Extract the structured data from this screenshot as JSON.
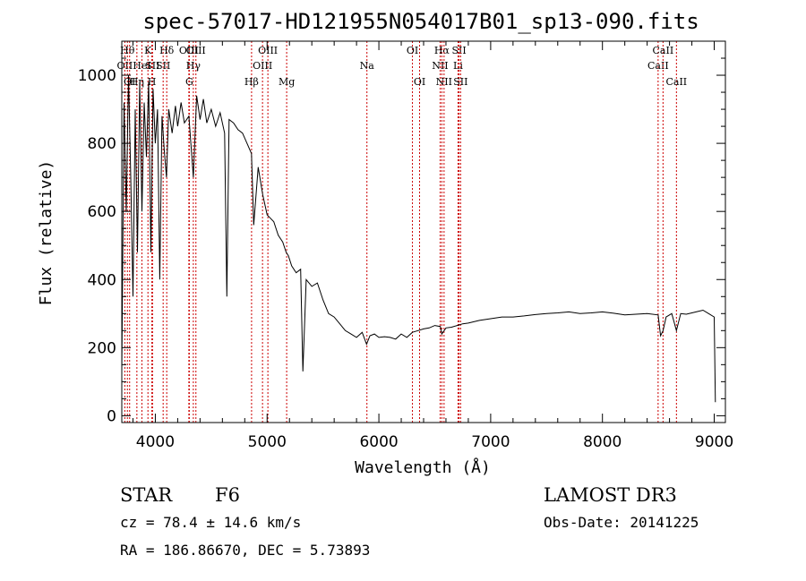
{
  "chart_data": {
    "type": "line",
    "title": "spec-57017-HD121955N054017B01_sp13-090.fits",
    "xlabel": "Wavelength (Å)",
    "ylabel": "Flux (relative)",
    "xlim": [
      3700,
      9100
    ],
    "ylim": [
      -20,
      1100
    ],
    "xticks": [
      4000,
      5000,
      6000,
      7000,
      8000,
      9000
    ],
    "yticks": [
      0,
      200,
      400,
      600,
      800,
      1000
    ],
    "line_color": "#000000",
    "marker_color": "#cc0000",
    "series": [
      {
        "name": "spectrum",
        "x": [
          3700,
          3720,
          3740,
          3760,
          3780,
          3800,
          3820,
          3840,
          3860,
          3880,
          3900,
          3920,
          3940,
          3960,
          3980,
          4000,
          4020,
          4040,
          4060,
          4080,
          4100,
          4120,
          4150,
          4180,
          4200,
          4230,
          4260,
          4300,
          4340,
          4370,
          4400,
          4430,
          4460,
          4500,
          4540,
          4580,
          4620,
          4640,
          4660,
          4700,
          4740,
          4780,
          4820,
          4860,
          4880,
          4920,
          4960,
          5000,
          5030,
          5060,
          5100,
          5140,
          5170,
          5190,
          5220,
          5260,
          5300,
          5320,
          5350,
          5400,
          5450,
          5500,
          5550,
          5600,
          5650,
          5700,
          5750,
          5800,
          5850,
          5890,
          5920,
          5960,
          6000,
          6050,
          6100,
          6150,
          6200,
          6250,
          6300,
          6350,
          6400,
          6450,
          6500,
          6550,
          6563,
          6600,
          6650,
          6700,
          6750,
          6800,
          6900,
          7000,
          7100,
          7200,
          7300,
          7400,
          7500,
          7600,
          7700,
          7800,
          7900,
          8000,
          8100,
          8200,
          8300,
          8400,
          8498,
          8520,
          8542,
          8570,
          8620,
          8662,
          8700,
          8750,
          8800,
          8850,
          8900,
          8950,
          9000,
          9010
        ],
        "y": [
          130,
          920,
          600,
          1000,
          700,
          350,
          900,
          480,
          980,
          600,
          920,
          760,
          980,
          480,
          960,
          800,
          900,
          400,
          880,
          780,
          700,
          900,
          830,
          910,
          850,
          920,
          860,
          880,
          700,
          940,
          870,
          930,
          860,
          900,
          850,
          890,
          830,
          350,
          870,
          860,
          840,
          830,
          800,
          770,
          560,
          730,
          650,
          590,
          580,
          570,
          530,
          510,
          480,
          470,
          440,
          420,
          430,
          130,
          400,
          380,
          390,
          340,
          300,
          290,
          270,
          250,
          240,
          230,
          245,
          210,
          235,
          240,
          230,
          232,
          230,
          225,
          240,
          230,
          245,
          250,
          255,
          258,
          265,
          262,
          240,
          258,
          260,
          265,
          270,
          272,
          280,
          285,
          290,
          290,
          293,
          297,
          300,
          302,
          305,
          300,
          302,
          305,
          301,
          296,
          298,
          300,
          296,
          235,
          250,
          290,
          300,
          250,
          300,
          298,
          302,
          306,
          310,
          300,
          290,
          40
        ]
      }
    ],
    "line_markers": [
      {
        "name": "OII",
        "x": 3727,
        "row": 2
      },
      {
        "name": "Hθ",
        "x": 3750,
        "row": 1
      },
      {
        "name": "OI",
        "x": 3770,
        "row": 3
      },
      {
        "name": "Hη",
        "x": 3835,
        "row": 3
      },
      {
        "name": "HeI",
        "x": 3880,
        "row": 2
      },
      {
        "name": "K",
        "x": 3934,
        "row": 1
      },
      {
        "name": "SII",
        "x": 3975,
        "row": 2
      },
      {
        "name": "H",
        "x": 3969,
        "row": 3
      },
      {
        "name": "Hδ",
        "x": 4102,
        "row": 1
      },
      {
        "name": "SII",
        "x": 4070,
        "row": 2
      },
      {
        "name": "OIII",
        "x": 4300,
        "row": 1
      },
      {
        "name": "Hγ",
        "x": 4340,
        "row": 2
      },
      {
        "name": "G",
        "x": 4304,
        "row": 3
      },
      {
        "name": "OIII",
        "x": 4363,
        "row": 1
      },
      {
        "name": "Hβ",
        "x": 4861,
        "row": 3
      },
      {
        "name": "OIII",
        "x": 4959,
        "row": 2
      },
      {
        "name": "OIII",
        "x": 5007,
        "row": 1
      },
      {
        "name": "Mg",
        "x": 5175,
        "row": 3
      },
      {
        "name": "Na",
        "x": 5893,
        "row": 2
      },
      {
        "name": "OI",
        "x": 6300,
        "row": 1
      },
      {
        "name": "OI",
        "x": 6364,
        "row": 3
      },
      {
        "name": "NII",
        "x": 6548,
        "row": 2
      },
      {
        "name": "Hα",
        "x": 6563,
        "row": 1
      },
      {
        "name": "NII",
        "x": 6583,
        "row": 3
      },
      {
        "name": "Li",
        "x": 6708,
        "row": 2
      },
      {
        "name": "SII",
        "x": 6717,
        "row": 1
      },
      {
        "name": "SII",
        "x": 6731,
        "row": 3
      },
      {
        "name": "CaII",
        "x": 8498,
        "row": 2
      },
      {
        "name": "CaII",
        "x": 8542,
        "row": 1
      },
      {
        "name": "CaII",
        "x": 8662,
        "row": 3
      }
    ]
  },
  "info": {
    "object_class": "STAR",
    "subclass": "F6",
    "survey": "LAMOST DR3",
    "cz": "cz = 78.4 ± 14.6 km/s",
    "obs_date": "Obs-Date: 20141225",
    "coords": "RA = 186.86670, DEC =   5.73893"
  }
}
